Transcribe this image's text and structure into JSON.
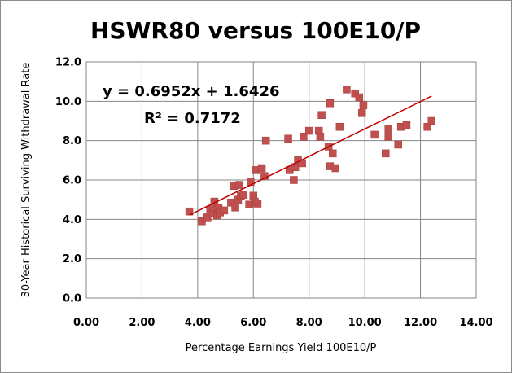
{
  "chart_data": {
    "type": "scatter",
    "title": "HSWR80 versus 100E10/P",
    "xlabel": "Percentage Earnings Yield 100E10/P",
    "ylabel": "30-Year Historical Surviving Withdrawal Rate",
    "xlim": [
      0,
      14
    ],
    "ylim": [
      0,
      12
    ],
    "xticks": [
      "0.00",
      "2.00",
      "4.00",
      "6.00",
      "8.00",
      "10.00",
      "12.00",
      "14.00"
    ],
    "yticks": [
      "0.0",
      "2.0",
      "4.0",
      "6.0",
      "8.0",
      "10.0",
      "12.0"
    ],
    "grid": true,
    "legend": "none",
    "marker_color": "#c0504d",
    "trendline_color": "#c00000",
    "trendline": {
      "equation": "y = 0.6952x + 1.6426",
      "r_squared": "R² = 0.7172",
      "slope": 0.6952,
      "intercept": 1.6426,
      "x_range": [
        3.7,
        12.4
      ]
    },
    "points": [
      [
        3.7,
        4.4
      ],
      [
        4.15,
        3.9
      ],
      [
        4.35,
        4.1
      ],
      [
        4.45,
        4.5
      ],
      [
        4.55,
        4.3
      ],
      [
        4.6,
        4.9
      ],
      [
        4.65,
        4.6
      ],
      [
        4.7,
        4.2
      ],
      [
        4.75,
        4.6
      ],
      [
        4.8,
        4.35
      ],
      [
        4.95,
        4.45
      ],
      [
        5.2,
        4.85
      ],
      [
        5.3,
        5.7
      ],
      [
        5.35,
        4.6
      ],
      [
        5.45,
        5.0
      ],
      [
        5.5,
        5.75
      ],
      [
        5.55,
        5.2
      ],
      [
        5.65,
        5.25
      ],
      [
        5.85,
        4.75
      ],
      [
        5.9,
        5.9
      ],
      [
        6.0,
        5.2
      ],
      [
        6.05,
        4.9
      ],
      [
        6.1,
        6.5
      ],
      [
        6.15,
        4.8
      ],
      [
        6.3,
        6.6
      ],
      [
        6.4,
        6.2
      ],
      [
        6.45,
        8.0
      ],
      [
        7.25,
        8.1
      ],
      [
        7.3,
        6.5
      ],
      [
        7.45,
        6.0
      ],
      [
        7.5,
        6.65
      ],
      [
        7.6,
        7.0
      ],
      [
        7.75,
        6.85
      ],
      [
        7.8,
        8.2
      ],
      [
        8.0,
        8.5
      ],
      [
        8.35,
        8.5
      ],
      [
        8.4,
        8.2
      ],
      [
        8.45,
        9.3
      ],
      [
        8.7,
        7.7
      ],
      [
        8.75,
        9.9
      ],
      [
        8.75,
        6.7
      ],
      [
        8.85,
        7.35
      ],
      [
        8.95,
        6.6
      ],
      [
        9.1,
        8.7
      ],
      [
        9.35,
        10.6
      ],
      [
        9.65,
        10.4
      ],
      [
        9.8,
        10.2
      ],
      [
        9.9,
        9.4
      ],
      [
        9.95,
        9.8
      ],
      [
        10.35,
        8.3
      ],
      [
        10.75,
        7.35
      ],
      [
        10.85,
        8.6
      ],
      [
        10.85,
        8.2
      ],
      [
        11.2,
        7.8
      ],
      [
        11.3,
        8.7
      ],
      [
        11.5,
        8.8
      ],
      [
        12.25,
        8.7
      ],
      [
        12.4,
        9.0
      ]
    ]
  }
}
